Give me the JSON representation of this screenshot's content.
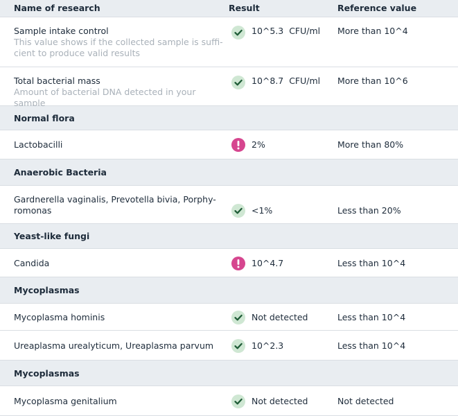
{
  "table": {
    "header": [
      "Name of research",
      "Result",
      "Reference value"
    ],
    "rows": [
      {
        "kind": "item",
        "name": [
          "Sample intake control"
        ],
        "description": [
          "This value shows if the collected sample is suffi-",
          "cient to produce valid results"
        ],
        "status": "ok",
        "result": "10^5.3  CFU/ml",
        "reference": "More than 10^4"
      },
      {
        "kind": "item",
        "name": [
          "Total bacterial mass"
        ],
        "description": [
          "Amount of bacterial DNA detected in your sample"
        ],
        "status": "ok",
        "result": "10^8.7  CFU/ml",
        "reference": "More than 10^6"
      },
      {
        "kind": "section",
        "name": [
          "Normal flora"
        ]
      },
      {
        "kind": "item",
        "name": [
          "Lactobacilli"
        ],
        "status": "warn",
        "result": "2%",
        "reference": "More than 80%"
      },
      {
        "kind": "section",
        "name": [
          "Anaerobic Bacteria"
        ]
      },
      {
        "kind": "item",
        "name": [
          "Gardnerella vaginalis, Prevotella bivia, Porphy-",
          "romonas"
        ],
        "status": "ok",
        "result": "<1%",
        "reference": "Less than 20%"
      },
      {
        "kind": "section",
        "name": [
          "Yeast-like fungi"
        ]
      },
      {
        "kind": "item",
        "name": [
          "Candida"
        ],
        "status": "warn",
        "result": "10^4.7",
        "reference": "Less than 10^4"
      },
      {
        "kind": "section",
        "name": [
          "Mycoplasmas"
        ]
      },
      {
        "kind": "item",
        "name": [
          "Mycoplasma hominis"
        ],
        "status": "ok",
        "result": "Not detected",
        "reference": "Less than 10^4"
      },
      {
        "kind": "item",
        "name": [
          "Ureaplasma urealyticum, Ureaplasma parvum"
        ],
        "status": "ok",
        "result": "10^2.3",
        "reference": "Less than 10^4"
      },
      {
        "kind": "section",
        "name": [
          "Mycoplasmas"
        ]
      },
      {
        "kind": "item",
        "name": [
          "Mycoplasma genitalium"
        ],
        "status": "ok",
        "result": "Not detected",
        "reference": "Not detected"
      }
    ]
  }
}
